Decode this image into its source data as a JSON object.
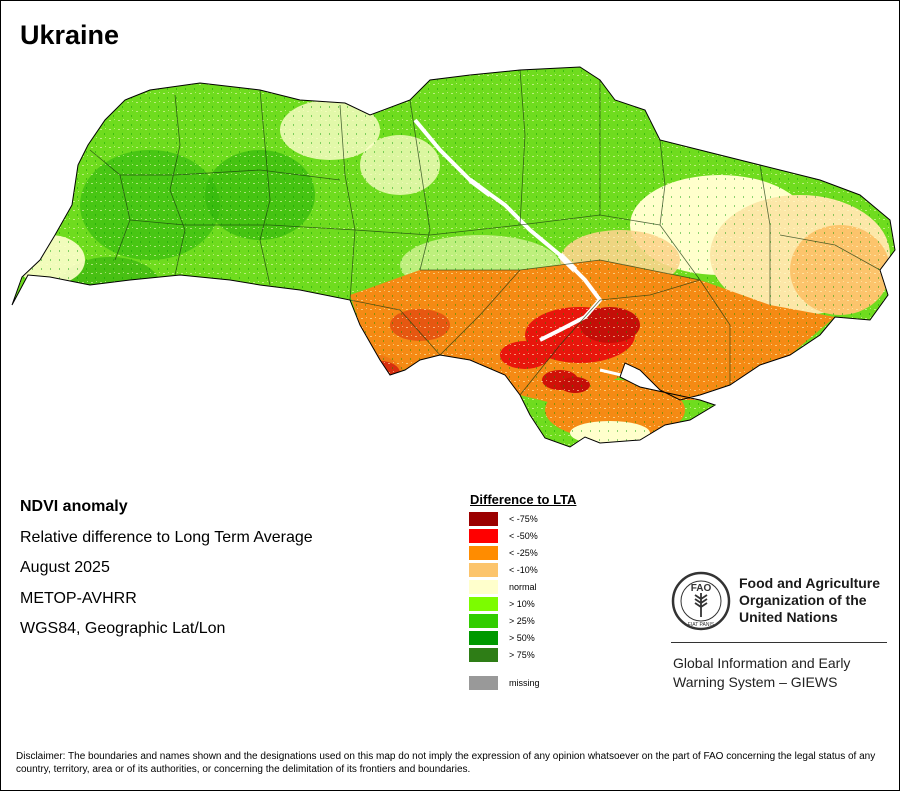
{
  "title": "Ukraine",
  "info": {
    "heading": "NDVI anomaly",
    "lines": [
      "Relative difference to Long Term Average",
      "August 2025",
      "METOP-AVHRR",
      "WGS84, Geographic Lat/Lon"
    ]
  },
  "legend": {
    "title": "Difference to LTA",
    "items": [
      {
        "label": "< -75%",
        "color": "#9b0000"
      },
      {
        "label": "< -50%",
        "color": "#ff0000"
      },
      {
        "label": "< -25%",
        "color": "#ff8c00"
      },
      {
        "label": "< -10%",
        "color": "#fcc46c"
      },
      {
        "label": "normal",
        "color": "#ffffcc"
      },
      {
        "label": "> 10%",
        "color": "#7cfc00"
      },
      {
        "label": "> 25%",
        "color": "#32cd00"
      },
      {
        "label": "> 50%",
        "color": "#009900"
      },
      {
        "label": "> 75%",
        "color": "#2e7d16"
      },
      {
        "label": "missing",
        "color": "#999999"
      }
    ]
  },
  "fao": {
    "name_lines": [
      "Food and Agriculture",
      "Organization of the",
      "United Nations"
    ],
    "emblem_text": "FAO",
    "emblem_motto": "FIAT PANIS"
  },
  "giews": {
    "lines": [
      "Global Information and Early",
      "Warning System – GIEWS"
    ]
  },
  "disclaimer": "Disclaimer: The boundaries and names shown and the designations used on this map do not imply the expression of any opinion whatsoever on the part of FAO concerning the legal status of any country, territory, area or of its authorities, or concerning the delimitation of its frontiers and boundaries."
}
